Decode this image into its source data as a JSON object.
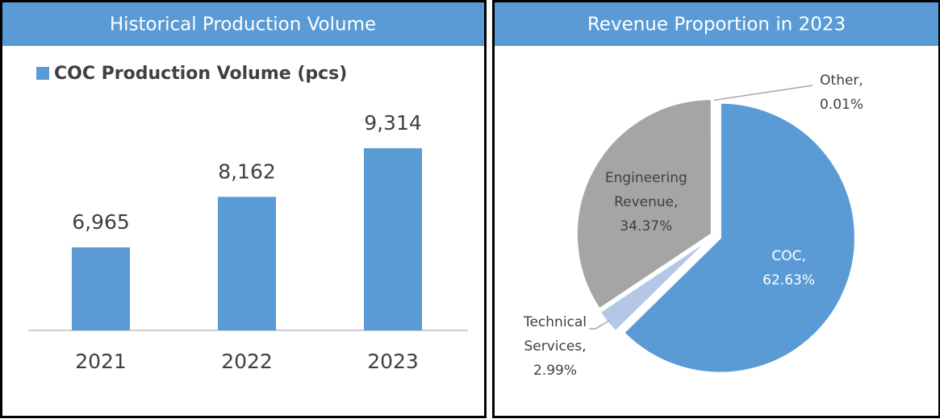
{
  "chart_data": [
    {
      "type": "bar",
      "title": "Historical Production Volume",
      "series": [
        {
          "name": "COC Production Volume (pcs)",
          "color": "#5b9bd5",
          "values": [
            6965,
            8162,
            9314
          ],
          "value_labels": [
            "6,965",
            "8,162",
            "9,314"
          ]
        }
      ],
      "categories": [
        "2021",
        "2022",
        "2023"
      ],
      "ylim": [
        5000,
        10000
      ]
    },
    {
      "type": "pie",
      "title": "Revenue Proportion in 2023",
      "categories": [
        "COC,",
        "Technical Services,",
        "Engineering Revenue,",
        "Other,"
      ],
      "values": [
        62.63,
        2.99,
        34.37,
        0.01
      ],
      "value_labels": [
        "62.63%",
        "2.99%",
        "34.37%",
        "0.01%"
      ],
      "colors": [
        "#5b9bd5",
        "#b4c7e7",
        "#a5a5a5",
        "#7f7f7f"
      ]
    }
  ]
}
